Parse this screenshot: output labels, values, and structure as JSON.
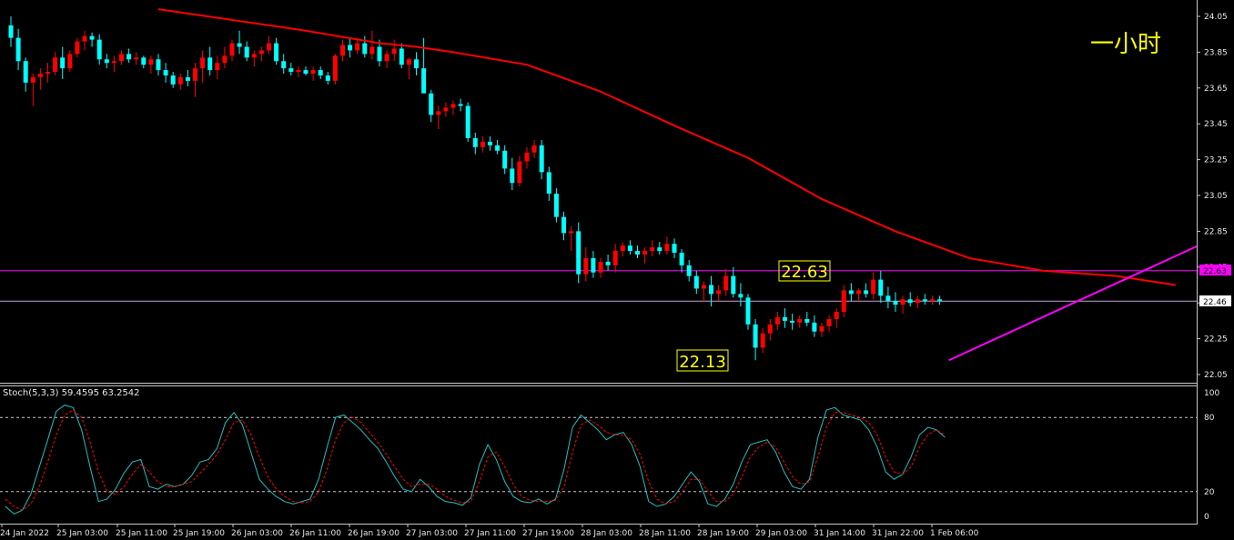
{
  "colors": {
    "background": "#000000",
    "bull_candle": "#ff0000",
    "bear_candle": "#00ffff",
    "ma_line": "#ff0000",
    "trendline": "#ff00ff",
    "stoch_main": "#20c0c0",
    "stoch_signal": "#ff0000",
    "label_bg": "#ffff00"
  },
  "header": {
    "timeframe_label": "一小时"
  },
  "annotations": {
    "high_label": "22.63",
    "low_label": "22.13"
  },
  "price_tags": {
    "resistance": "22.63",
    "current": "22.46"
  },
  "stoch_panel": {
    "label": "Stoch(5,3,3) 59.4595 63.2542",
    "levels": [
      "100",
      "80",
      "20",
      "0"
    ]
  },
  "chart_data": [
    {
      "type": "candlestick",
      "symbol_hint": "",
      "y_axis": {
        "range": [
          21.99,
          24.09
        ],
        "ticks": [
          "24.05",
          "23.85",
          "23.65",
          "23.45",
          "23.25",
          "23.05",
          "22.85",
          "22.65",
          "22.45",
          "22.25",
          "22.05"
        ]
      },
      "x_axis": {
        "ticks": [
          "24 Jan 2022",
          "25 Jan 03:00",
          "25 Jan 11:00",
          "25 Jan 19:00",
          "26 Jan 03:00",
          "26 Jan 11:00",
          "26 Jan 19:00",
          "27 Jan 03:00",
          "27 Jan 11:00",
          "27 Jan 19:00",
          "28 Jan 03:00",
          "28 Jan 11:00",
          "28 Jan 19:00",
          "29 Jan 03:00",
          "31 Jan 14:00",
          "31 Jan 22:00",
          "1 Feb 06:00"
        ]
      },
      "horizontal_lines": [
        {
          "value": 22.63,
          "label": "22.63"
        },
        {
          "value": 22.46,
          "label": "22.46"
        }
      ],
      "trendline": {
        "from": {
          "bar": 128,
          "price": 22.13
        },
        "to": {
          "bar": 200,
          "price": 22.79
        }
      },
      "moving_average_points": [
        [
          20,
          24.09
        ],
        [
          30,
          24.03
        ],
        [
          40,
          23.97
        ],
        [
          50,
          23.9
        ],
        [
          55,
          23.88
        ],
        [
          60,
          23.85
        ],
        [
          70,
          23.78
        ],
        [
          80,
          23.63
        ],
        [
          90,
          23.44
        ],
        [
          100,
          23.26
        ],
        [
          110,
          23.03
        ],
        [
          120,
          22.85
        ],
        [
          130,
          22.7
        ],
        [
          140,
          22.63
        ],
        [
          150,
          22.6
        ],
        [
          158,
          22.55
        ]
      ],
      "candles_ohlc": [
        [
          24.0,
          24.05,
          23.88,
          23.93
        ],
        [
          23.93,
          23.98,
          23.75,
          23.8
        ],
        [
          23.8,
          23.82,
          23.63,
          23.68
        ],
        [
          23.68,
          23.73,
          23.55,
          23.71
        ],
        [
          23.71,
          23.76,
          23.64,
          23.73
        ],
        [
          23.73,
          23.79,
          23.68,
          23.74
        ],
        [
          23.74,
          23.85,
          23.72,
          23.82
        ],
        [
          23.82,
          23.88,
          23.7,
          23.76
        ],
        [
          23.76,
          23.86,
          23.74,
          23.84
        ],
        [
          23.84,
          23.93,
          23.82,
          23.91
        ],
        [
          23.91,
          23.97,
          23.86,
          23.94
        ],
        [
          23.94,
          23.96,
          23.88,
          23.92
        ],
        [
          23.92,
          23.95,
          23.78,
          23.81
        ],
        [
          23.81,
          23.84,
          23.76,
          23.79
        ],
        [
          23.79,
          23.83,
          23.74,
          23.8
        ],
        [
          23.8,
          23.86,
          23.78,
          23.84
        ],
        [
          23.84,
          23.87,
          23.79,
          23.81
        ],
        [
          23.81,
          23.85,
          23.78,
          23.82
        ],
        [
          23.82,
          23.83,
          23.76,
          23.78
        ],
        [
          23.78,
          23.83,
          23.73,
          23.81
        ],
        [
          23.81,
          23.84,
          23.72,
          23.75
        ],
        [
          23.75,
          23.79,
          23.68,
          23.72
        ],
        [
          23.72,
          23.74,
          23.65,
          23.67
        ],
        [
          23.67,
          23.73,
          23.64,
          23.71
        ],
        [
          23.71,
          23.75,
          23.66,
          23.69
        ],
        [
          23.69,
          23.79,
          23.6,
          23.76
        ],
        [
          23.76,
          23.86,
          23.68,
          23.82
        ],
        [
          23.82,
          23.88,
          23.72,
          23.75
        ],
        [
          23.75,
          23.83,
          23.7,
          23.79
        ],
        [
          23.79,
          23.88,
          23.76,
          23.83
        ],
        [
          23.83,
          23.92,
          23.8,
          23.9
        ],
        [
          23.9,
          23.97,
          23.84,
          23.88
        ],
        [
          23.88,
          23.91,
          23.8,
          23.82
        ],
        [
          23.82,
          23.86,
          23.77,
          23.84
        ],
        [
          23.84,
          23.88,
          23.8,
          23.86
        ],
        [
          23.86,
          23.94,
          23.84,
          23.9
        ],
        [
          23.9,
          23.93,
          23.78,
          23.8
        ],
        [
          23.8,
          23.84,
          23.73,
          23.76
        ],
        [
          23.76,
          23.79,
          23.72,
          23.74
        ],
        [
          23.74,
          23.77,
          23.71,
          23.75
        ],
        [
          23.75,
          23.77,
          23.72,
          23.73
        ],
        [
          23.73,
          23.77,
          23.69,
          23.75
        ],
        [
          23.75,
          23.77,
          23.7,
          23.72
        ],
        [
          23.72,
          23.74,
          23.67,
          23.69
        ],
        [
          23.69,
          23.84,
          23.67,
          23.83
        ],
        [
          23.83,
          23.92,
          23.8,
          23.89
        ],
        [
          23.89,
          23.93,
          23.82,
          23.86
        ],
        [
          23.86,
          23.93,
          23.84,
          23.9
        ],
        [
          23.9,
          23.94,
          23.82,
          23.84
        ],
        [
          23.84,
          23.97,
          23.81,
          23.88
        ],
        [
          23.88,
          23.92,
          23.77,
          23.8
        ],
        [
          23.8,
          23.86,
          23.76,
          23.84
        ],
        [
          23.84,
          23.92,
          23.8,
          23.87
        ],
        [
          23.87,
          23.9,
          23.76,
          23.78
        ],
        [
          23.78,
          23.82,
          23.7,
          23.81
        ],
        [
          23.81,
          23.85,
          23.72,
          23.76
        ],
        [
          23.76,
          23.93,
          23.72,
          23.62
        ],
        [
          23.62,
          23.64,
          23.46,
          23.5
        ],
        [
          23.5,
          23.55,
          23.42,
          23.52
        ],
        [
          23.52,
          23.57,
          23.49,
          23.54
        ],
        [
          23.54,
          23.58,
          23.5,
          23.56
        ],
        [
          23.56,
          23.59,
          23.52,
          23.55
        ],
        [
          23.55,
          23.57,
          23.35,
          23.37
        ],
        [
          23.37,
          23.4,
          23.28,
          23.32
        ],
        [
          23.32,
          23.38,
          23.29,
          23.35
        ],
        [
          23.35,
          23.38,
          23.3,
          23.33
        ],
        [
          23.33,
          23.36,
          23.28,
          23.3
        ],
        [
          23.3,
          23.33,
          23.17,
          23.2
        ],
        [
          23.2,
          23.26,
          23.08,
          23.12
        ],
        [
          23.12,
          23.27,
          23.1,
          23.24
        ],
        [
          23.24,
          23.32,
          23.2,
          23.29
        ],
        [
          23.29,
          23.36,
          23.26,
          23.33
        ],
        [
          23.33,
          23.36,
          23.14,
          23.18
        ],
        [
          23.18,
          23.21,
          23.02,
          23.06
        ],
        [
          23.06,
          23.09,
          22.9,
          22.93
        ],
        [
          22.93,
          22.96,
          22.8,
          22.84
        ],
        [
          22.84,
          22.88,
          22.74,
          22.85
        ],
        [
          22.85,
          22.9,
          22.56,
          22.61
        ],
        [
          22.61,
          22.76,
          22.57,
          22.7
        ],
        [
          22.7,
          22.74,
          22.59,
          22.62
        ],
        [
          22.62,
          22.7,
          22.59,
          22.68
        ],
        [
          22.68,
          22.72,
          22.63,
          22.66
        ],
        [
          22.66,
          22.78,
          22.62,
          22.74
        ],
        [
          22.74,
          22.79,
          22.71,
          22.77
        ],
        [
          22.77,
          22.8,
          22.72,
          22.74
        ],
        [
          22.74,
          22.77,
          22.7,
          22.72
        ],
        [
          22.72,
          22.76,
          22.67,
          22.74
        ],
        [
          22.74,
          22.8,
          22.71,
          22.76
        ],
        [
          22.76,
          22.79,
          22.72,
          22.74
        ],
        [
          22.74,
          22.82,
          22.72,
          22.78
        ],
        [
          22.78,
          22.81,
          22.7,
          22.73
        ],
        [
          22.73,
          22.75,
          22.62,
          22.66
        ],
        [
          22.66,
          22.69,
          22.57,
          22.6
        ],
        [
          22.6,
          22.63,
          22.5,
          22.53
        ],
        [
          22.53,
          22.57,
          22.46,
          22.55
        ],
        [
          22.55,
          22.6,
          22.43,
          22.5
        ],
        [
          22.5,
          22.55,
          22.46,
          22.52
        ],
        [
          22.52,
          22.64,
          22.49,
          22.6
        ],
        [
          22.6,
          22.65,
          22.48,
          22.5
        ],
        [
          22.5,
          22.56,
          22.43,
          22.48
        ],
        [
          22.48,
          22.5,
          22.3,
          22.33
        ],
        [
          22.33,
          22.36,
          22.13,
          22.2
        ],
        [
          22.2,
          22.31,
          22.17,
          22.28
        ],
        [
          22.28,
          22.36,
          22.24,
          22.33
        ],
        [
          22.33,
          22.4,
          22.3,
          22.37
        ],
        [
          22.37,
          22.42,
          22.31,
          22.35
        ],
        [
          22.35,
          22.39,
          22.3,
          22.34
        ],
        [
          22.34,
          22.38,
          22.31,
          22.36
        ],
        [
          22.36,
          22.4,
          22.32,
          22.34
        ],
        [
          22.34,
          22.38,
          22.26,
          22.29
        ],
        [
          22.29,
          22.34,
          22.26,
          22.32
        ],
        [
          22.32,
          22.38,
          22.29,
          22.36
        ],
        [
          22.36,
          22.42,
          22.31,
          22.4
        ],
        [
          22.4,
          22.55,
          22.37,
          22.52
        ],
        [
          22.52,
          22.56,
          22.46,
          22.5
        ],
        [
          22.5,
          22.53,
          22.46,
          22.52
        ],
        [
          22.52,
          22.56,
          22.48,
          22.5
        ],
        [
          22.5,
          22.62,
          22.47,
          22.58
        ],
        [
          22.58,
          22.63,
          22.45,
          22.49
        ],
        [
          22.49,
          22.54,
          22.42,
          22.46
        ],
        [
          22.46,
          22.51,
          22.4,
          22.44
        ],
        [
          22.44,
          22.49,
          22.39,
          22.47
        ],
        [
          22.47,
          22.51,
          22.43,
          22.45
        ],
        [
          22.45,
          22.49,
          22.42,
          22.47
        ],
        [
          22.47,
          22.5,
          22.44,
          22.46
        ],
        [
          22.46,
          22.49,
          22.44,
          22.47
        ],
        [
          22.47,
          22.49,
          22.44,
          22.46
        ]
      ]
    },
    {
      "type": "line",
      "name": "Stoch(5,3,3)",
      "y_axis": {
        "range": [
          0,
          100
        ],
        "ticks": [
          "100",
          "80",
          "20",
          "0"
        ]
      },
      "levels": [
        80,
        20
      ],
      "series": [
        {
          "name": "main",
          "values": [
            8,
            2,
            5,
            18,
            40,
            62,
            85,
            90,
            88,
            70,
            40,
            12,
            14,
            22,
            35,
            44,
            46,
            24,
            22,
            26,
            24,
            26,
            33,
            44,
            46,
            55,
            76,
            84,
            74,
            52,
            30,
            22,
            16,
            12,
            10,
            12,
            14,
            30,
            56,
            80,
            82,
            76,
            70,
            62,
            55,
            44,
            32,
            22,
            20,
            30,
            24,
            16,
            12,
            11,
            9,
            15,
            42,
            58,
            46,
            28,
            16,
            12,
            11,
            14,
            10,
            14,
            38,
            72,
            82,
            76,
            70,
            62,
            66,
            68,
            58,
            40,
            12,
            8,
            10,
            16,
            26,
            36,
            28,
            10,
            8,
            14,
            26,
            44,
            58,
            60,
            62,
            52,
            36,
            24,
            22,
            30,
            64,
            86,
            88,
            82,
            80,
            78,
            70,
            56,
            36,
            30,
            34,
            48,
            66,
            72,
            70,
            64
          ]
        },
        {
          "name": "signal",
          "values": [
            14,
            8,
            5,
            10,
            24,
            44,
            66,
            82,
            86,
            80,
            60,
            36,
            20,
            18,
            24,
            34,
            42,
            36,
            28,
            24,
            24,
            26,
            28,
            35,
            42,
            50,
            62,
            76,
            78,
            66,
            48,
            32,
            22,
            16,
            12,
            11,
            12,
            20,
            38,
            62,
            76,
            80,
            76,
            68,
            60,
            50,
            40,
            30,
            24,
            26,
            26,
            22,
            16,
            13,
            11,
            12,
            28,
            48,
            52,
            40,
            26,
            16,
            13,
            12,
            12,
            13,
            24,
            52,
            74,
            78,
            74,
            68,
            66,
            66,
            62,
            50,
            28,
            14,
            10,
            12,
            20,
            30,
            30,
            20,
            12,
            12,
            18,
            32,
            48,
            56,
            60,
            56,
            44,
            32,
            26,
            28,
            48,
            72,
            84,
            84,
            82,
            80,
            76,
            66,
            48,
            36,
            34,
            40,
            56,
            66,
            70,
            66
          ]
        }
      ],
      "x_axis": {
        "ticks": [
          "24 Jan 2022",
          "25 Jan 03:00",
          "25 Jan 11:00",
          "25 Jan 19:00",
          "26 Jan 03:00",
          "26 Jan 11:00",
          "26 Jan 19:00",
          "27 Jan 03:00",
          "27 Jan 11:00",
          "27 Jan 19:00",
          "28 Jan 03:00",
          "28 Jan 11:00",
          "28 Jan 19:00",
          "29 Jan 03:00",
          "31 Jan 14:00",
          "31 Jan 22:00",
          "1 Feb 06:00"
        ]
      }
    }
  ]
}
